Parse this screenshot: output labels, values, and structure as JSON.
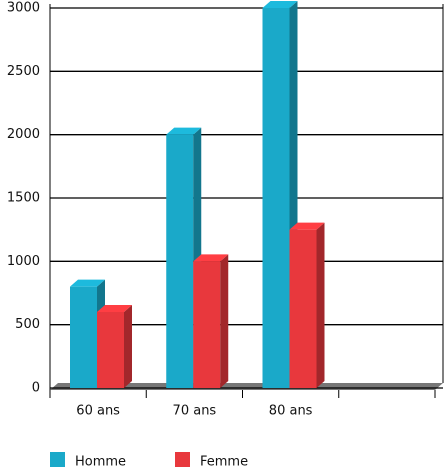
{
  "chart_data": {
    "type": "bar",
    "categories": [
      "60 ans",
      "70 ans",
      "80 ans",
      null
    ],
    "series": [
      {
        "name": "Homme",
        "color": "#1aa9c9",
        "values": [
          800,
          2000,
          3000,
          null
        ]
      },
      {
        "name": "Femme",
        "color": "#e8383d",
        "values": [
          600,
          1000,
          1250,
          null
        ]
      }
    ],
    "ylim": [
      0,
      3000
    ],
    "yticks": [
      0,
      500,
      1000,
      1500,
      2000,
      2500,
      3000
    ],
    "grid": true
  }
}
